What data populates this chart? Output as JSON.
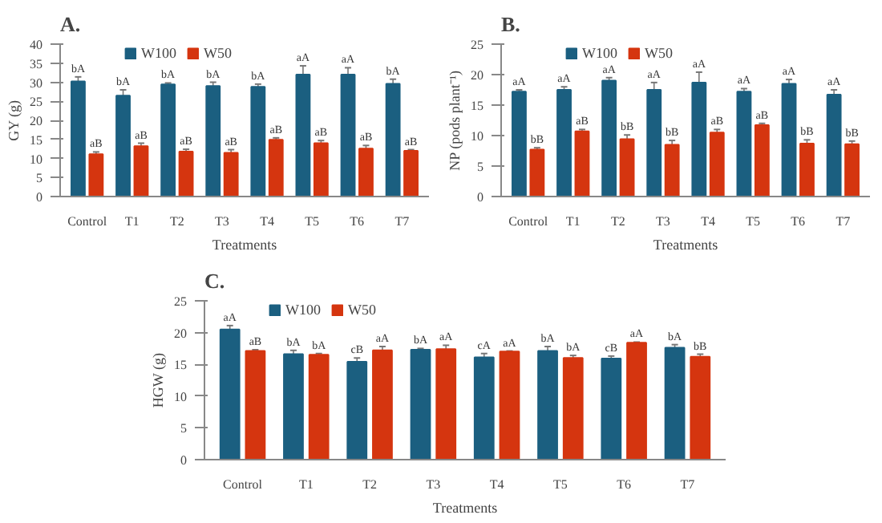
{
  "chart_data": [
    {
      "type": "bar",
      "title": "A.",
      "xlabel": "Treatments",
      "ylabel": "GY (g)",
      "categories": [
        "Control",
        "T1",
        "T2",
        "T3",
        "T4",
        "T5",
        "T6",
        "T7"
      ],
      "ylim": [
        0,
        40
      ],
      "yticks": [
        0,
        5,
        10,
        15,
        20,
        25,
        30,
        35,
        40
      ],
      "legend": "top",
      "series": [
        {
          "name": "W100",
          "color": "#1b5f80",
          "values": [
            30.2,
            26.5,
            29.4,
            29,
            28.8,
            32,
            32,
            29.6
          ],
          "errors": [
            1.2,
            1.5,
            0.4,
            1,
            0.7,
            2.3,
            1.8,
            1.2
          ],
          "value_labels": [
            "bA",
            "bA",
            "bA",
            "bA",
            "bA",
            "aA",
            "aA",
            "bA"
          ]
        },
        {
          "name": "W50",
          "color": "#d5350f",
          "values": [
            11.1,
            13.2,
            11.8,
            11.5,
            14.9,
            14,
            12.6,
            12
          ],
          "errors": [
            0.6,
            0.8,
            0.6,
            0.8,
            0.5,
            0.7,
            0.8,
            0.3
          ],
          "value_labels": [
            "aB",
            "aB",
            "aB",
            "aB",
            "aB",
            "aB",
            "aB",
            "aB"
          ]
        }
      ]
    },
    {
      "type": "bar",
      "title": "B.",
      "xlabel": "Treatments",
      "ylabel": "NP (pods plant⁻¹)",
      "categories": [
        "Control",
        "T1",
        "T2",
        "T3",
        "T4",
        "T5",
        "T6",
        "T7"
      ],
      "ylim": [
        0,
        25
      ],
      "yticks": [
        0,
        5,
        10,
        15,
        20,
        25
      ],
      "legend": "top",
      "series": [
        {
          "name": "W100",
          "color": "#1b5f80",
          "values": [
            17.2,
            17.5,
            19,
            17.5,
            18.7,
            17.2,
            18.5,
            16.7
          ],
          "errors": [
            0.3,
            0.5,
            0.5,
            1.2,
            1.7,
            0.5,
            0.7,
            0.8
          ],
          "value_labels": [
            "aA",
            "aA",
            "aA",
            "aA",
            "aA",
            "aA",
            "aA",
            "aA"
          ]
        },
        {
          "name": "W50",
          "color": "#d5350f",
          "values": [
            7.7,
            10.7,
            9.4,
            8.5,
            10.5,
            11.7,
            8.7,
            8.6
          ],
          "errors": [
            0.3,
            0.3,
            0.7,
            0.7,
            0.5,
            0.3,
            0.6,
            0.5
          ],
          "value_labels": [
            "bB",
            "aB",
            "bB",
            "bB",
            "aB",
            "aB",
            "bB",
            "bB"
          ]
        }
      ]
    },
    {
      "type": "bar",
      "title": "C.",
      "xlabel": "Treatments",
      "ylabel": "HGW (g)",
      "categories": [
        "Control",
        "T1",
        "T2",
        "T3",
        "T4",
        "T5",
        "T6",
        "T7"
      ],
      "ylim": [
        0,
        25
      ],
      "yticks": [
        0,
        5,
        10,
        15,
        20,
        25
      ],
      "legend": "top",
      "series": [
        {
          "name": "W100",
          "color": "#1b5f80",
          "values": [
            20.5,
            16.6,
            15.4,
            17.3,
            16.1,
            17.1,
            15.9,
            17.6
          ],
          "errors": [
            0.6,
            0.6,
            0.6,
            0.2,
            0.6,
            0.7,
            0.4,
            0.5
          ],
          "value_labels": [
            "aA",
            "bA",
            "cB",
            "bA",
            "cA",
            "bA",
            "cB",
            "bA"
          ]
        },
        {
          "name": "W50",
          "color": "#d5350f",
          "values": [
            17.1,
            16.5,
            17.2,
            17.4,
            17.0,
            16.0,
            18.4,
            16.2
          ],
          "errors": [
            0.2,
            0.2,
            0.6,
            0.6,
            0.1,
            0.4,
            0.1,
            0.4
          ],
          "value_labels": [
            "aB",
            "bA",
            "aA",
            "aA",
            "aA",
            "bA",
            "aA",
            "bB"
          ]
        }
      ]
    }
  ]
}
